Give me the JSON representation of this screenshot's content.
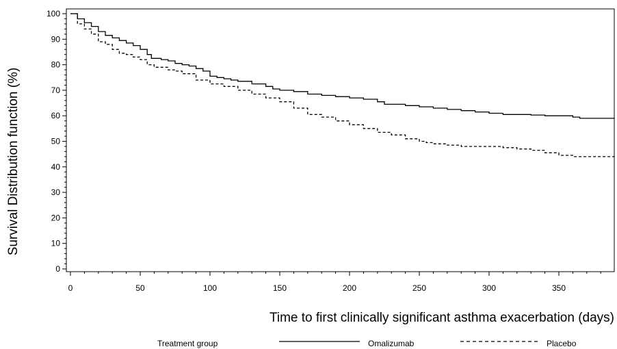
{
  "chart_data": {
    "type": "line",
    "title": "",
    "xlabel": "Time to first clinically significant asthma exacerbation (days)",
    "ylabel": "Survival Distribution function (%)",
    "xlim": [
      0,
      390
    ],
    "ylim": [
      0,
      100
    ],
    "x_ticks": [
      0,
      50,
      100,
      150,
      200,
      250,
      300,
      350
    ],
    "y_ticks": [
      0,
      10,
      20,
      30,
      40,
      50,
      60,
      70,
      80,
      90,
      100
    ],
    "grid": false,
    "legend": {
      "title": "Treatment group",
      "placement": "bottom"
    },
    "series": [
      {
        "name": "Omalizumab",
        "style": "solid",
        "color": "#000000",
        "x": [
          0,
          5,
          10,
          15,
          20,
          25,
          30,
          35,
          40,
          45,
          50,
          55,
          58,
          60,
          65,
          70,
          75,
          80,
          85,
          90,
          95,
          100,
          105,
          110,
          115,
          120,
          130,
          140,
          145,
          150,
          160,
          170,
          180,
          190,
          200,
          210,
          220,
          225,
          230,
          240,
          250,
          260,
          270,
          280,
          290,
          300,
          310,
          320,
          330,
          340,
          350,
          360,
          365,
          370,
          380,
          390
        ],
        "y": [
          100,
          98,
          96.5,
          95,
          93,
          91.5,
          90.5,
          89.5,
          88.5,
          87.5,
          86,
          84,
          82.5,
          82.5,
          82,
          81.5,
          80.5,
          80,
          79.5,
          78.5,
          77.5,
          75.5,
          75,
          74.5,
          74,
          73.5,
          72.5,
          71.5,
          70.5,
          70,
          69.5,
          68.5,
          68,
          67.5,
          67,
          66.5,
          65.5,
          64.5,
          64.5,
          64,
          63.5,
          63,
          62.5,
          62,
          61.5,
          61,
          60.5,
          60.5,
          60.3,
          60,
          60,
          59.5,
          59,
          59,
          59,
          59
        ]
      },
      {
        "name": "Placebo",
        "style": "dashed",
        "color": "#000000",
        "x": [
          0,
          5,
          10,
          15,
          20,
          25,
          30,
          35,
          40,
          45,
          50,
          55,
          60,
          65,
          70,
          75,
          80,
          90,
          100,
          110,
          120,
          130,
          140,
          150,
          160,
          170,
          180,
          190,
          200,
          210,
          220,
          230,
          240,
          250,
          255,
          260,
          270,
          280,
          290,
          300,
          310,
          320,
          330,
          340,
          350,
          360,
          370,
          380,
          390
        ],
        "y": [
          100,
          96,
          94,
          92,
          89,
          88,
          86,
          84.5,
          84,
          83,
          82,
          80,
          79,
          79,
          78,
          77.5,
          76.5,
          74,
          72.5,
          71.5,
          70,
          68.5,
          67,
          65.5,
          63,
          60.5,
          59.5,
          58,
          56.5,
          55,
          53.5,
          52.5,
          51,
          50,
          49.5,
          49,
          48.5,
          48,
          48,
          48,
          47.5,
          47,
          46.5,
          45.5,
          44.5,
          44,
          44,
          44,
          44
        ]
      }
    ]
  }
}
